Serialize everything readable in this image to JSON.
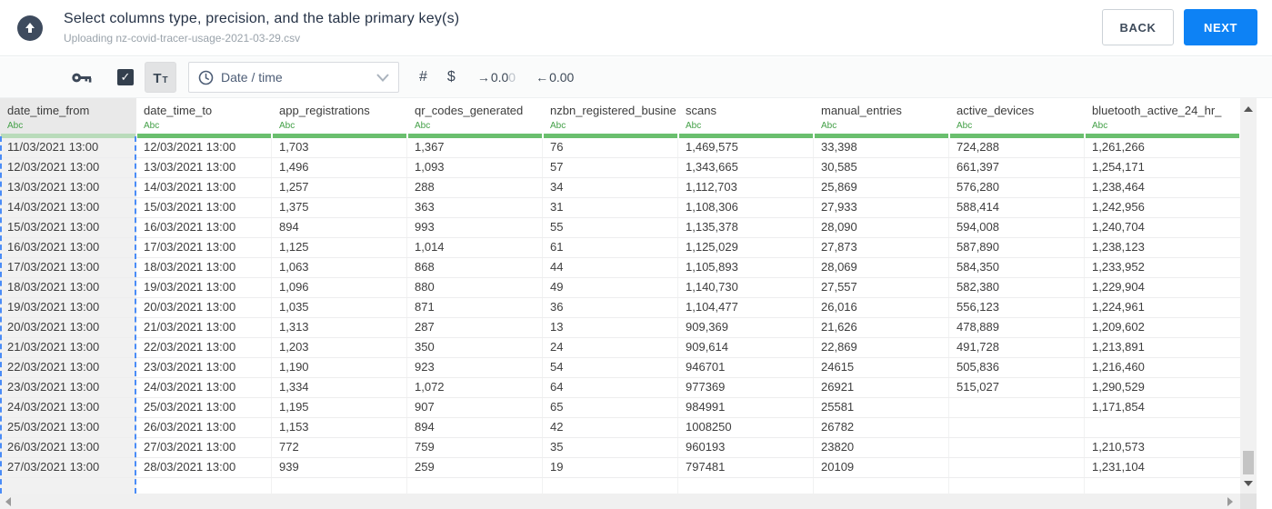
{
  "header": {
    "title": "Select columns type, precision, and the table primary key(s)",
    "subtitle": "Uploading nz-covid-tracer-usage-2021-03-29.csv",
    "back_label": "BACK",
    "next_label": "NEXT"
  },
  "toolbar": {
    "checkbox_checked": true,
    "check_glyph": "✓",
    "text_type_button": {
      "large": "T",
      "small": "T"
    },
    "type_dropdown": {
      "value": "Date / time"
    },
    "hash_label": "#",
    "dollar_label": "$",
    "precision_out": {
      "arrow": "→",
      "main": "0.0",
      "faded": "0"
    },
    "precision_in": {
      "arrow": "←",
      "value": "0.00"
    }
  },
  "colors": {
    "accent_blue": "#0d82f5",
    "type_green": "#43a047",
    "column_bar_green": "#6abf6e",
    "selected_bar_green": "#b9dbba",
    "selection_dash_blue": "#4a8cf7",
    "dark_slate_icons": "#3c4858"
  },
  "table": {
    "columns": [
      {
        "name": "date_time_from",
        "type": "Abc",
        "selected": true
      },
      {
        "name": "date_time_to",
        "type": "Abc",
        "selected": false
      },
      {
        "name": "app_registrations",
        "type": "Abc",
        "selected": false
      },
      {
        "name": "qr_codes_generated",
        "type": "Abc",
        "selected": false
      },
      {
        "name": "nzbn_registered_busine",
        "type": "Abc",
        "selected": false
      },
      {
        "name": "scans",
        "type": "Abc",
        "selected": false
      },
      {
        "name": "manual_entries",
        "type": "Abc",
        "selected": false
      },
      {
        "name": "active_devices",
        "type": "Abc",
        "selected": false
      },
      {
        "name": "bluetooth_active_24_hr_",
        "type": "Abc",
        "selected": false
      }
    ],
    "rows": [
      [
        "11/03/2021 13:00",
        "12/03/2021 13:00",
        "1,703",
        "1,367",
        "76",
        "1,469,575",
        "33,398",
        "724,288",
        "1,261,266"
      ],
      [
        "12/03/2021 13:00",
        "13/03/2021 13:00",
        "1,496",
        "1,093",
        "57",
        "1,343,665",
        "30,585",
        "661,397",
        "1,254,171"
      ],
      [
        "13/03/2021 13:00",
        "14/03/2021 13:00",
        "1,257",
        "288",
        "34",
        "1,112,703",
        "25,869",
        "576,280",
        "1,238,464"
      ],
      [
        "14/03/2021 13:00",
        "15/03/2021 13:00",
        "1,375",
        "363",
        "31",
        "1,108,306",
        "27,933",
        "588,414",
        "1,242,956"
      ],
      [
        "15/03/2021 13:00",
        "16/03/2021 13:00",
        "894",
        "993",
        "55",
        "1,135,378",
        "28,090",
        "594,008",
        "1,240,704"
      ],
      [
        "16/03/2021 13:00",
        "17/03/2021 13:00",
        "1,125",
        "1,014",
        "61",
        "1,125,029",
        "27,873",
        "587,890",
        "1,238,123"
      ],
      [
        "17/03/2021 13:00",
        "18/03/2021 13:00",
        "1,063",
        "868",
        "44",
        "1,105,893",
        "28,069",
        "584,350",
        "1,233,952"
      ],
      [
        "18/03/2021 13:00",
        "19/03/2021 13:00",
        "1,096",
        "880",
        "49",
        "1,140,730",
        "27,557",
        "582,380",
        "1,229,904"
      ],
      [
        "19/03/2021 13:00",
        "20/03/2021 13:00",
        "1,035",
        "871",
        "36",
        "1,104,477",
        "26,016",
        "556,123",
        "1,224,961"
      ],
      [
        "20/03/2021 13:00",
        "21/03/2021 13:00",
        "1,313",
        "287",
        "13",
        "909,369",
        "21,626",
        "478,889",
        "1,209,602"
      ],
      [
        "21/03/2021 13:00",
        "22/03/2021 13:00",
        "1,203",
        "350",
        "24",
        "909,614",
        "22,869",
        "491,728",
        "1,213,891"
      ],
      [
        "22/03/2021 13:00",
        "23/03/2021 13:00",
        "1,190",
        "923",
        "54",
        "946701",
        "24615",
        "505,836",
        "1,216,460"
      ],
      [
        "23/03/2021 13:00",
        "24/03/2021 13:00",
        "1,334",
        "1,072",
        "64",
        "977369",
        "26921",
        "515,027",
        "1,290,529"
      ],
      [
        "24/03/2021 13:00",
        "25/03/2021 13:00",
        "1,195",
        "907",
        "65",
        "984991",
        "25581",
        "",
        "1,171,854"
      ],
      [
        "25/03/2021 13:00",
        "26/03/2021 13:00",
        "1,153",
        "894",
        "42",
        "1008250",
        "26782",
        "",
        ""
      ],
      [
        "26/03/2021 13:00",
        "27/03/2021 13:00",
        "772",
        "759",
        "35",
        "960193",
        "23820",
        "",
        "1,210,573"
      ],
      [
        "27/03/2021 13:00",
        "28/03/2021 13:00",
        "939",
        "259",
        "19",
        "797481",
        "20109",
        "",
        "1,231,104"
      ]
    ]
  }
}
